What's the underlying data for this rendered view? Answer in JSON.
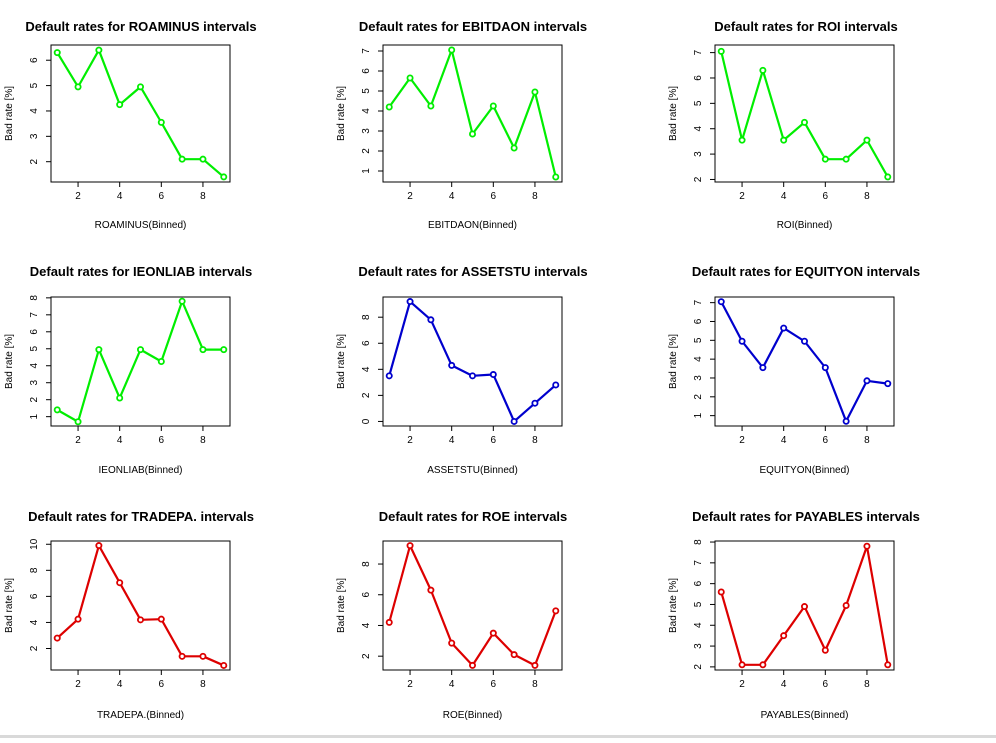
{
  "chart_data": [
    {
      "type": "line",
      "title": "Default rates for ROAMINUS intervals",
      "xlabel": "ROAMINUS(Binned)",
      "ylabel": "Bad rate [%]",
      "color": "#00ee00",
      "x": [
        1,
        2,
        3,
        4,
        5,
        6,
        7,
        8,
        9
      ],
      "values": [
        6.3,
        4.95,
        6.4,
        4.25,
        4.95,
        3.55,
        2.1,
        2.1,
        1.4
      ],
      "xticks": [
        2,
        4,
        6,
        8
      ],
      "yticks": [
        2,
        3,
        4,
        5,
        6
      ],
      "xlim": [
        0.7,
        9.3
      ],
      "ylim": [
        1.2,
        6.6
      ]
    },
    {
      "type": "line",
      "title": "Default rates for EBITDAON intervals",
      "xlabel": "EBITDAON(Binned)",
      "ylabel": "Bad rate [%]",
      "color": "#00ee00",
      "x": [
        1,
        2,
        3,
        4,
        5,
        6,
        7,
        8,
        9
      ],
      "values": [
        4.2,
        5.65,
        4.25,
        7.05,
        2.85,
        4.25,
        2.15,
        4.95,
        0.7
      ],
      "xticks": [
        2,
        4,
        6,
        8
      ],
      "yticks": [
        1,
        2,
        3,
        4,
        5,
        6,
        7
      ],
      "xlim": [
        0.7,
        9.3
      ],
      "ylim": [
        0.45,
        7.3
      ]
    },
    {
      "type": "line",
      "title": "Default rates for ROI intervals",
      "xlabel": "ROI(Binned)",
      "ylabel": "Bad rate [%]",
      "color": "#00ee00",
      "x": [
        1,
        2,
        3,
        4,
        5,
        6,
        7,
        8,
        9
      ],
      "values": [
        7.05,
        3.55,
        6.3,
        3.55,
        4.25,
        2.8,
        2.8,
        3.55,
        2.1
      ],
      "xticks": [
        2,
        4,
        6,
        8
      ],
      "yticks": [
        2,
        3,
        4,
        5,
        6,
        7
      ],
      "xlim": [
        0.7,
        9.3
      ],
      "ylim": [
        1.9,
        7.3
      ]
    },
    {
      "type": "line",
      "title": "Default rates for IEONLIAB intervals",
      "xlabel": "IEONLIAB(Binned)",
      "ylabel": "Bad rate [%]",
      "color": "#00ee00",
      "x": [
        1,
        2,
        3,
        4,
        5,
        6,
        7,
        8,
        9
      ],
      "values": [
        1.4,
        0.7,
        4.95,
        2.1,
        4.95,
        4.25,
        7.8,
        4.95,
        4.95
      ],
      "xticks": [
        2,
        4,
        6,
        8
      ],
      "yticks": [
        1,
        2,
        3,
        4,
        5,
        6,
        7,
        8
      ],
      "xlim": [
        0.7,
        9.3
      ],
      "ylim": [
        0.45,
        8.05
      ]
    },
    {
      "type": "line",
      "title": "Default rates for ASSETSTU intervals",
      "xlabel": "ASSETSTU(Binned)",
      "ylabel": "Bad rate [%]",
      "color": "#0000cd",
      "x": [
        1,
        2,
        3,
        4,
        5,
        6,
        7,
        8,
        9
      ],
      "values": [
        3.5,
        9.2,
        7.8,
        4.3,
        3.5,
        3.6,
        0.0,
        1.4,
        2.8
      ],
      "xticks": [
        2,
        4,
        6,
        8
      ],
      "yticks": [
        0,
        2,
        4,
        6,
        8
      ],
      "xlim": [
        0.7,
        9.3
      ],
      "ylim": [
        -0.35,
        9.55
      ]
    },
    {
      "type": "line",
      "title": "Default rates for EQUITYON intervals",
      "xlabel": "EQUITYON(Binned)",
      "ylabel": "Bad rate [%]",
      "color": "#0000cd",
      "x": [
        1,
        2,
        3,
        4,
        5,
        6,
        7,
        8,
        9
      ],
      "values": [
        7.05,
        4.95,
        3.55,
        5.65,
        4.95,
        3.55,
        0.7,
        2.85,
        2.7
      ],
      "xticks": [
        2,
        4,
        6,
        8
      ],
      "yticks": [
        1,
        2,
        3,
        4,
        5,
        6,
        7
      ],
      "xlim": [
        0.7,
        9.3
      ],
      "ylim": [
        0.45,
        7.3
      ]
    },
    {
      "type": "line",
      "title": "Default rates for TRADEPA. intervals",
      "xlabel": "TRADEPA.(Binned)",
      "ylabel": "Bad rate [%]",
      "color": "#dd0000",
      "x": [
        1,
        2,
        3,
        4,
        5,
        6,
        7,
        8,
        9
      ],
      "values": [
        2.8,
        4.25,
        9.9,
        7.05,
        4.2,
        4.25,
        1.4,
        1.4,
        0.7
      ],
      "xticks": [
        2,
        4,
        6,
        8
      ],
      "yticks": [
        2,
        4,
        6,
        8,
        10
      ],
      "xlim": [
        0.7,
        9.3
      ],
      "ylim": [
        0.35,
        10.25
      ]
    },
    {
      "type": "line",
      "title": "Default rates for ROE intervals",
      "xlabel": "ROE(Binned)",
      "ylabel": "Bad rate [%]",
      "color": "#dd0000",
      "x": [
        1,
        2,
        3,
        4,
        5,
        6,
        7,
        8,
        9
      ],
      "values": [
        4.2,
        9.2,
        6.3,
        2.85,
        1.4,
        3.5,
        2.1,
        1.4,
        4.95
      ],
      "xticks": [
        2,
        4,
        6,
        8
      ],
      "yticks": [
        2,
        4,
        6,
        8
      ],
      "xlim": [
        0.7,
        9.3
      ],
      "ylim": [
        1.1,
        9.5
      ]
    },
    {
      "type": "line",
      "title": "Default rates for PAYABLES intervals",
      "xlabel": "PAYABLES(Binned)",
      "ylabel": "Bad rate [%]",
      "color": "#dd0000",
      "x": [
        1,
        2,
        3,
        4,
        5,
        6,
        7,
        8,
        9
      ],
      "values": [
        5.6,
        2.1,
        2.1,
        3.5,
        4.9,
        2.8,
        4.95,
        7.8,
        2.1
      ],
      "xticks": [
        2,
        4,
        6,
        8
      ],
      "yticks": [
        2,
        3,
        4,
        5,
        6,
        7,
        8
      ],
      "xlim": [
        0.7,
        9.3
      ],
      "ylim": [
        1.85,
        8.05
      ]
    }
  ]
}
